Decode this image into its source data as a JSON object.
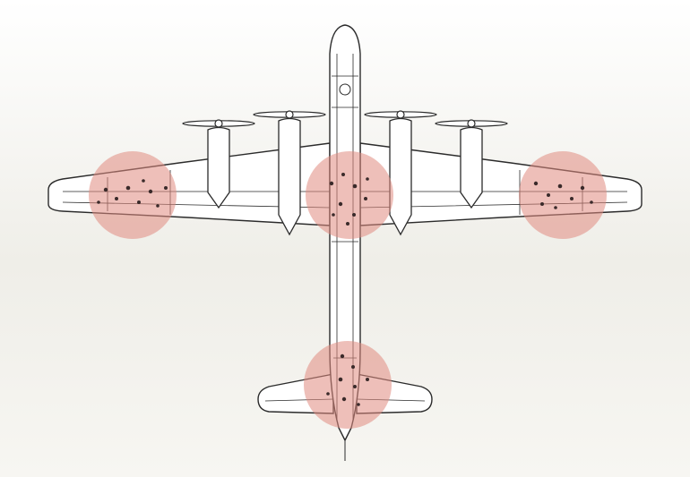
{
  "figure": {
    "subject": "aircraft-top-view-outline",
    "colors": {
      "background_top": "#ffffff",
      "background_mid": "#f2f1ec",
      "line": "#2b2b2b",
      "fill": "#ffffff",
      "damage_circle": "#e08a80",
      "damage_circle_opacity": 0.55,
      "bullet_hole": "#3a2a2a"
    },
    "damage_zones": [
      {
        "id": "left-wing-tip",
        "label": ""
      },
      {
        "id": "fuselage-center",
        "label": ""
      },
      {
        "id": "right-wing-tip",
        "label": ""
      },
      {
        "id": "tail",
        "label": ""
      }
    ]
  }
}
